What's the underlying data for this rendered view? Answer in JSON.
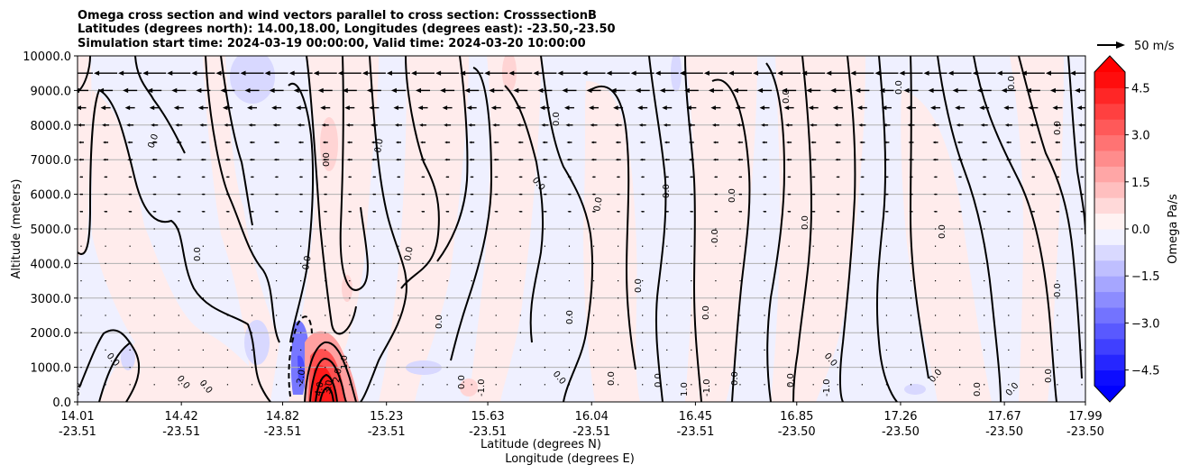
{
  "chart_data": {
    "type": "contour",
    "title_lines": [
      "Omega cross section and wind vectors parallel to cross section: CrosssectionB",
      "Latitudes (degrees north): 14.00,18.00, Longitudes (degrees east): -23.50,-23.50",
      "Simulation start time: 2024-03-19 00:00:00, Valid time: 2024-03-20 10:00:00"
    ],
    "ylabel": "Altitude (meters)",
    "xlabel_lat": "Latitude (degrees N)",
    "xlabel_lon": "Longitude (degrees E)",
    "ylim": [
      0,
      10000
    ],
    "y_ticks": [
      "0.0",
      "1000.0",
      "2000.0",
      "3000.0",
      "4000.0",
      "5000.0",
      "6000.0",
      "7000.0",
      "8000.0",
      "9000.0",
      "10000.0"
    ],
    "x_ticks": [
      {
        "lat": "14.01",
        "lon": "-23.51"
      },
      {
        "lat": "14.42",
        "lon": "-23.51"
      },
      {
        "lat": "14.82",
        "lon": "-23.51"
      },
      {
        "lat": "15.23",
        "lon": "-23.51"
      },
      {
        "lat": "15.63",
        "lon": "-23.51"
      },
      {
        "lat": "16.04",
        "lon": "-23.51"
      },
      {
        "lat": "16.45",
        "lon": "-23.51"
      },
      {
        "lat": "16.85",
        "lon": "-23.50"
      },
      {
        "lat": "17.26",
        "lon": "-23.50"
      },
      {
        "lat": "17.67",
        "lon": "-23.50"
      },
      {
        "lat": "17.99",
        "lon": "-23.50"
      }
    ],
    "x_tick_values": [
      14.01,
      14.42,
      14.82,
      15.23,
      15.63,
      16.04,
      16.45,
      16.85,
      17.26,
      17.67,
      17.99
    ],
    "xlim": [
      14.01,
      17.99
    ],
    "colorbar": {
      "label": "Omega Pa/s",
      "range": [
        -5.0,
        5.0
      ],
      "ticks": [
        "4.5",
        "3.0",
        "1.5",
        "0.0",
        "−1.5",
        "−3.0",
        "−4.5"
      ],
      "tick_values": [
        4.5,
        3.0,
        1.5,
        0.0,
        -1.5,
        -3.0,
        -4.5
      ]
    },
    "quiver_key": "50 m/s",
    "contour_labels": [
      "0.0",
      "1.0",
      "-1.0",
      "2.0",
      "-2.0",
      "3.0",
      "4.0"
    ],
    "features": [
      {
        "name": "strong ascent core",
        "lat": 14.97,
        "altitude_m": 800,
        "omega": 4.5
      },
      {
        "name": "descent band",
        "lat": 14.91,
        "altitude_m": 1200,
        "omega": -2.5
      }
    ]
  },
  "colors": {
    "positive": "#ff0000",
    "negative": "#0000ff",
    "neutral": "#ffffff"
  }
}
